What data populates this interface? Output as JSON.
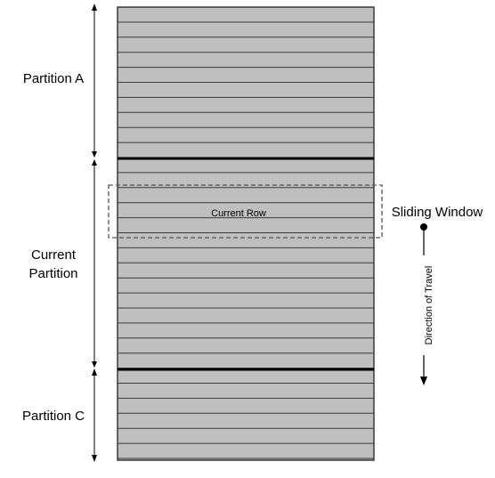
{
  "partitions": {
    "top_label": "Partition A",
    "middle_label_line1": "Current",
    "middle_label_line2": "Partition",
    "bottom_label": "Partition C"
  },
  "window": {
    "current_row_label": "Current Row",
    "sliding_window_label": "Sliding Window",
    "direction_label": "Direction of Travel"
  },
  "colors": {
    "row_fill": "#bfbfbf",
    "row_line": "#3a3a3a",
    "partition_line": "#000000",
    "window_border": "#555555"
  }
}
